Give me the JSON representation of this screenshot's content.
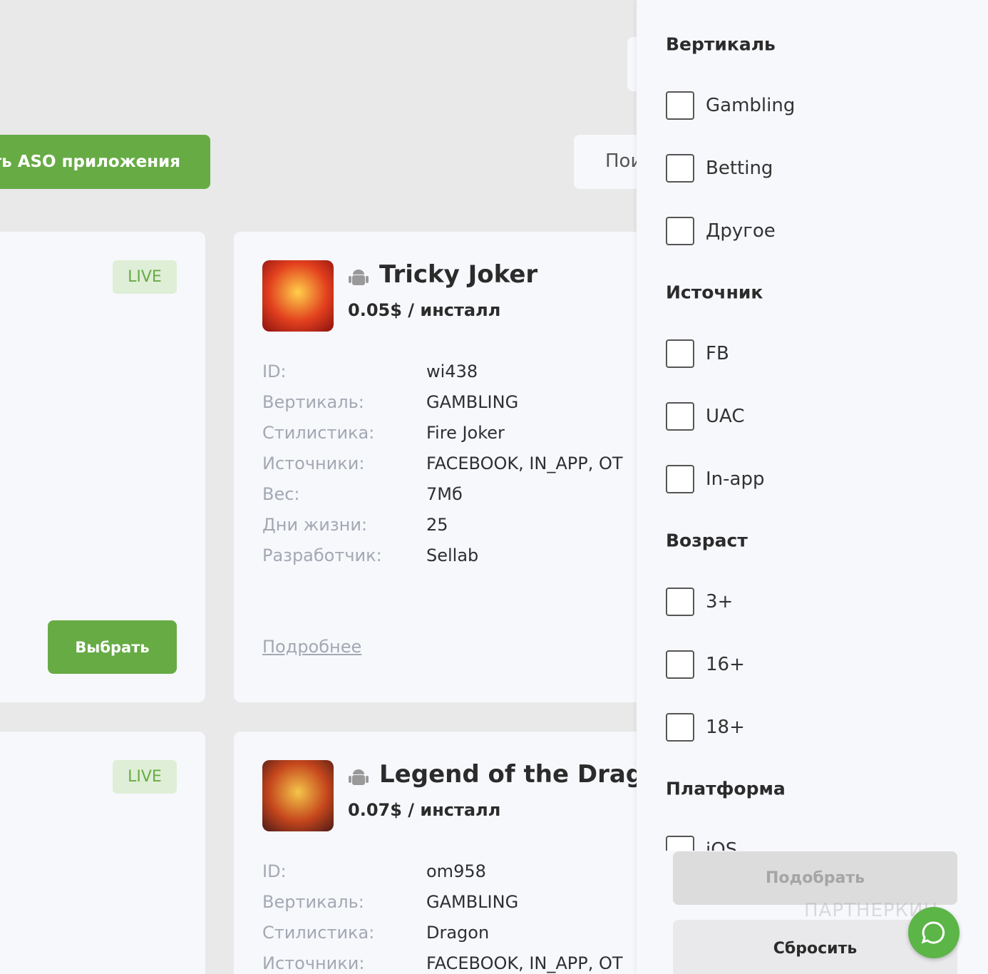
{
  "toolbar": {
    "aso_button": "Подобрать ASO приложения",
    "search_button": "Поиск"
  },
  "side_cards": [
    {
      "status": "LIVE",
      "select_button": "Выбрать"
    },
    {
      "status": "LIVE"
    }
  ],
  "apps": [
    {
      "title": "Tricky Joker",
      "price": "0.05$ / инсталл",
      "fields": [
        {
          "label": "ID:",
          "value": "wi438"
        },
        {
          "label": "Вертикаль:",
          "value": "GAMBLING"
        },
        {
          "label": "Стилистика:",
          "value": "Fire Joker"
        },
        {
          "label": "Источники:",
          "value": "FACEBOOK, IN_APP, OT"
        },
        {
          "label": "Вес:",
          "value": "7Мб"
        },
        {
          "label": "Дни жизни:",
          "value": "25"
        },
        {
          "label": "Разработчик:",
          "value": "Sellab"
        }
      ],
      "more_link": "Подробнее"
    },
    {
      "title": "Legend of the Drago",
      "price": "0.07$ / инсталл",
      "fields": [
        {
          "label": "ID:",
          "value": "om958"
        },
        {
          "label": "Вертикаль:",
          "value": "GAMBLING"
        },
        {
          "label": "Стилистика:",
          "value": "Dragon"
        },
        {
          "label": "Источники:",
          "value": "FACEBOOK, IN_APP, OT"
        }
      ]
    }
  ],
  "filters": {
    "sections": [
      {
        "title": "Вертикаль",
        "options": [
          "Gambling",
          "Betting",
          "Другое"
        ]
      },
      {
        "title": "Источник",
        "options": [
          "FB",
          "UAC",
          "In-app"
        ]
      },
      {
        "title": "Возраст",
        "options": [
          "3+",
          "16+",
          "18+"
        ]
      },
      {
        "title": "Платформа",
        "options": [
          "iOS"
        ]
      }
    ],
    "apply_button": "Подобрать",
    "reset_button": "Сбросить"
  },
  "watermark": "ПАРТНЕРКИН"
}
